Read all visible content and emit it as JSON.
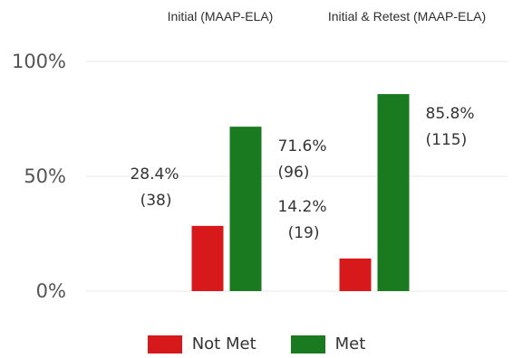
{
  "chart_data": {
    "type": "bar",
    "categories": [
      "Initial (MAAP-ELA)",
      "Initial & Retest (MAAP-ELA)"
    ],
    "series": [
      {
        "name": "Not Met",
        "color": "#d7191c",
        "values": [
          28.4,
          14.2
        ],
        "labels_pct": [
          "28.4%",
          "14.2%"
        ],
        "labels_count": [
          "(38)",
          "(19)"
        ]
      },
      {
        "name": "Met",
        "color": "#1a7a1f",
        "values": [
          71.6,
          85.8
        ],
        "labels_pct": [
          "71.6%",
          "85.8%"
        ],
        "labels_count": [
          "(96)",
          "(115)"
        ]
      }
    ],
    "yticks": [
      "0%",
      "50%",
      "100%"
    ],
    "ytick_values": [
      0,
      50,
      100
    ],
    "ylim": [
      0,
      100
    ],
    "grid": true,
    "legend_position": "bottom"
  }
}
